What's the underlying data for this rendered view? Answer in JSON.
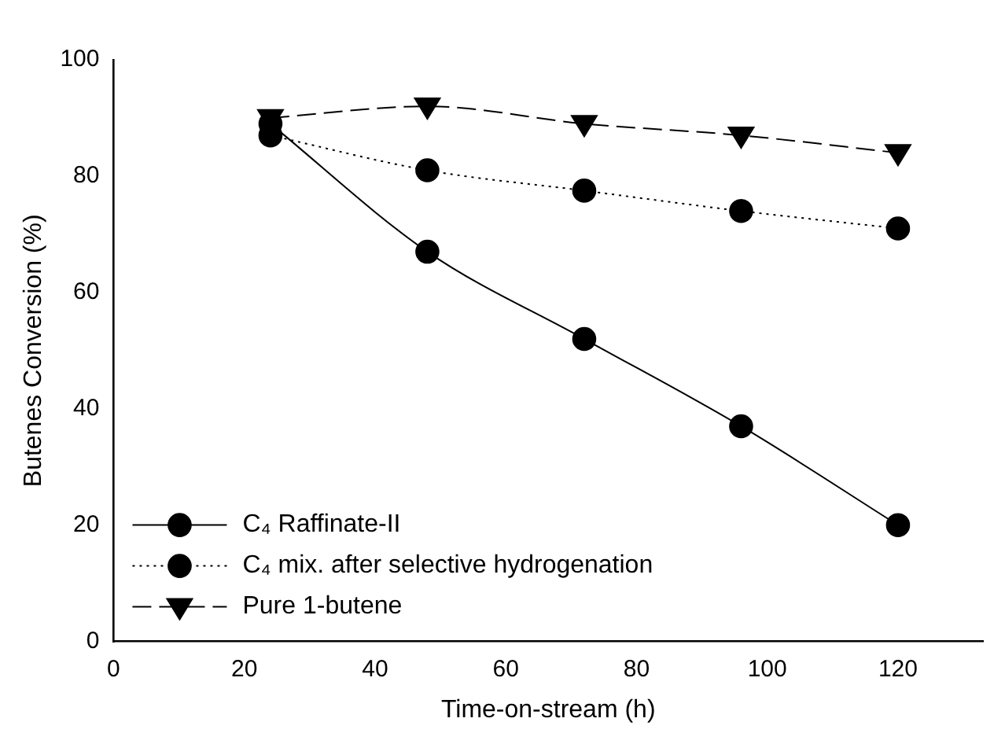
{
  "chart_data": {
    "type": "line",
    "xlabel": "Time-on-stream (h)",
    "ylabel": "Butenes Conversion (%)",
    "x": [
      24,
      48,
      72,
      96,
      120
    ],
    "series": [
      {
        "name": "C₄ Raffinate-II",
        "color": "#000000",
        "values": [
          89,
          67,
          52,
          37,
          20
        ],
        "marker": "circle",
        "line_style": "solid"
      },
      {
        "name": "C₄ mix. after selective hydrogenation",
        "color": "#000000",
        "values": [
          87,
          81,
          77.5,
          74,
          71
        ],
        "marker": "circle",
        "line_style": "dotted"
      },
      {
        "name": "Pure 1-butene",
        "color": "#000000",
        "values": [
          90,
          92,
          89,
          87,
          84
        ],
        "marker": "triangle",
        "line_style": "dashed"
      }
    ],
    "xlim": [
      0,
      133
    ],
    "xticks": [
      0,
      20,
      40,
      60,
      80,
      100,
      120
    ],
    "ylim": [
      0,
      100
    ],
    "yticks": [
      0,
      20,
      40,
      60,
      80,
      100
    ],
    "grid": false,
    "legend": "bottom left"
  }
}
